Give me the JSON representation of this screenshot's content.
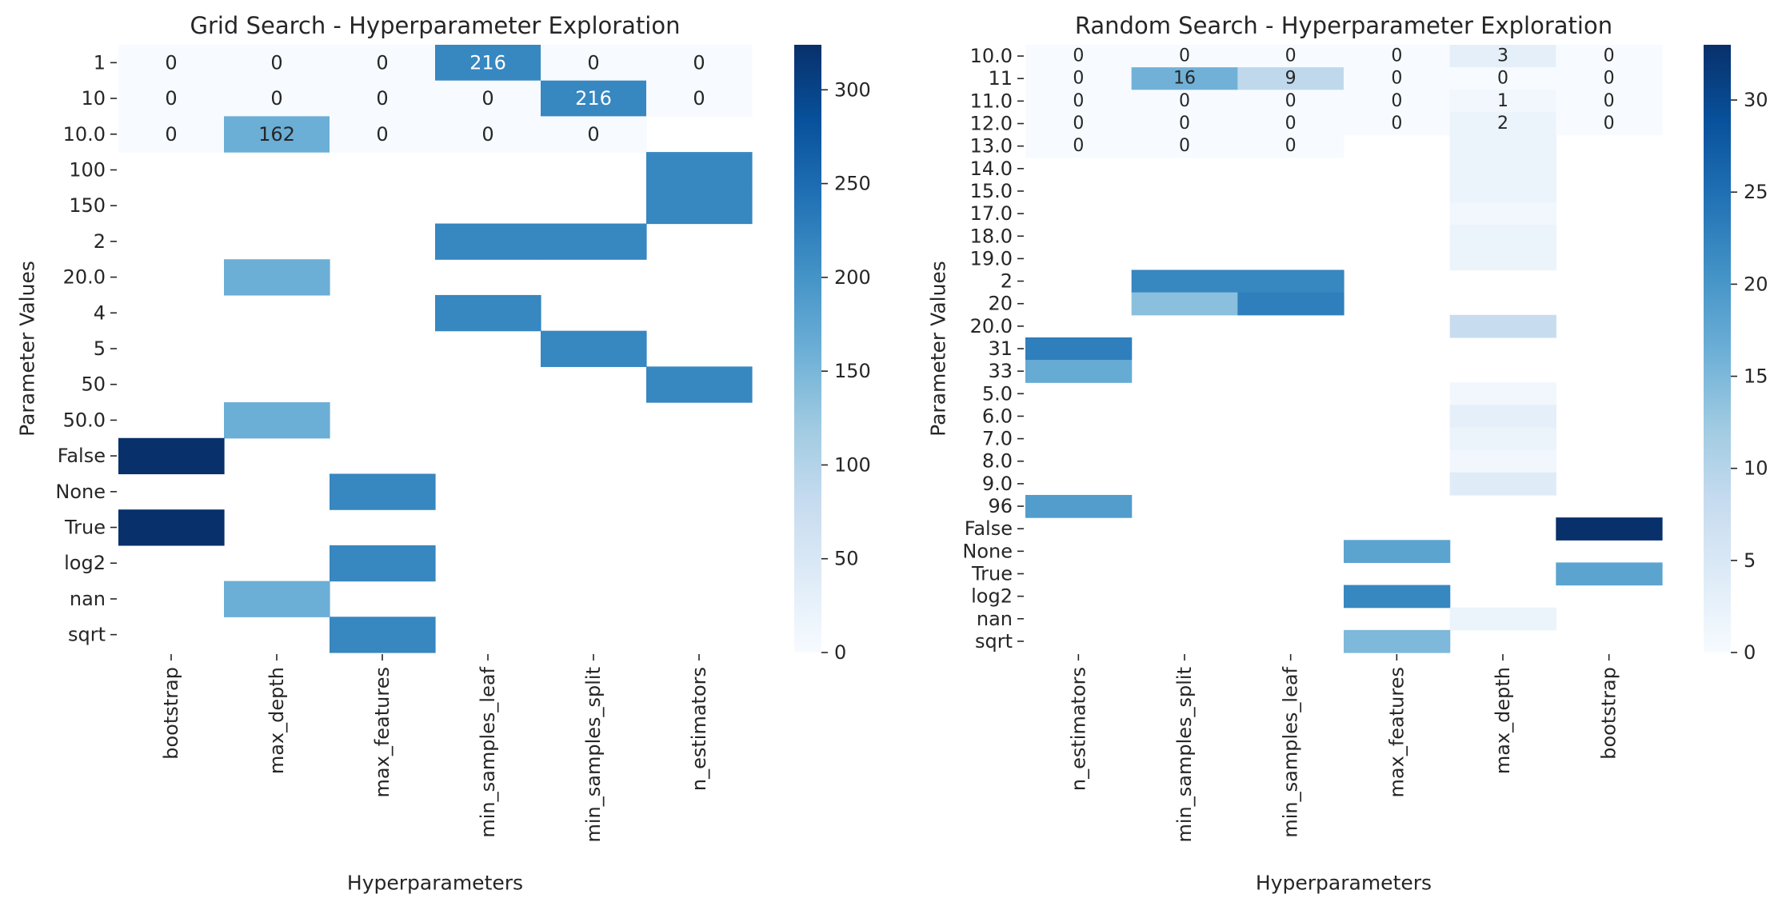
{
  "chart_data": [
    {
      "type": "heatmap",
      "title": "Grid Search - Hyperparameter Exploration",
      "xlabel": "Hyperparameters",
      "ylabel": "Parameter Values",
      "x_categories": [
        "bootstrap",
        "max_depth",
        "max_features",
        "min_samples_leaf",
        "min_samples_split",
        "n_estimators"
      ],
      "y_categories": [
        "1",
        "10",
        "10.0",
        "100",
        "150",
        "2",
        "20.0",
        "4",
        "5",
        "50",
        "50.0",
        "False",
        "None",
        "True",
        "log2",
        "nan",
        "sqrt"
      ],
      "values": [
        [
          0,
          0,
          0,
          216,
          0,
          0
        ],
        [
          0,
          0,
          0,
          0,
          216,
          0
        ],
        [
          0,
          162,
          0,
          0,
          0,
          null
        ],
        [
          null,
          null,
          null,
          null,
          null,
          216
        ],
        [
          null,
          null,
          null,
          null,
          null,
          216
        ],
        [
          null,
          null,
          null,
          216,
          216,
          null
        ],
        [
          null,
          162,
          null,
          null,
          null,
          null
        ],
        [
          null,
          null,
          null,
          216,
          null,
          null
        ],
        [
          null,
          null,
          null,
          null,
          216,
          null
        ],
        [
          null,
          null,
          null,
          null,
          null,
          216
        ],
        [
          null,
          162,
          null,
          null,
          null,
          null
        ],
        [
          324,
          null,
          null,
          null,
          null,
          null
        ],
        [
          null,
          null,
          216,
          null,
          null,
          null
        ],
        [
          324,
          null,
          null,
          null,
          null,
          null
        ],
        [
          null,
          null,
          216,
          null,
          null,
          null
        ],
        [
          null,
          162,
          null,
          null,
          null,
          null
        ],
        [
          null,
          null,
          216,
          null,
          null,
          null
        ]
      ],
      "annotation_rows": 3,
      "vmin": 0,
      "vmax": 324,
      "colorbar_ticks": [
        0,
        50,
        100,
        150,
        200,
        250,
        300
      ],
      "colormap": [
        "#f7fbff",
        "#deebf7",
        "#c6dbef",
        "#9ecae1",
        "#6baed6",
        "#4292c6",
        "#2171b5",
        "#08519c",
        "#08306b"
      ]
    },
    {
      "type": "heatmap",
      "title": "Random Search - Hyperparameter Exploration",
      "xlabel": "Hyperparameters",
      "ylabel": "Parameter Values",
      "x_categories": [
        "n_estimators",
        "min_samples_split",
        "min_samples_leaf",
        "max_features",
        "max_depth",
        "bootstrap"
      ],
      "y_categories": [
        "10.0",
        "11",
        "11.0",
        "12.0",
        "13.0",
        "14.0",
        "15.0",
        "17.0",
        "18.0",
        "19.0",
        "2",
        "20",
        "20.0",
        "31",
        "33",
        "5.0",
        "6.0",
        "7.0",
        "8.0",
        "9.0",
        "96",
        "False",
        "None",
        "True",
        "log2",
        "nan",
        "sqrt"
      ],
      "values": [
        [
          0,
          0,
          0,
          0,
          3,
          0
        ],
        [
          0,
          16,
          9,
          0,
          0,
          0
        ],
        [
          0,
          0,
          0,
          0,
          1,
          0
        ],
        [
          0,
          0,
          0,
          0,
          2,
          0
        ],
        [
          0,
          0,
          0,
          null,
          2,
          null
        ],
        [
          null,
          null,
          null,
          null,
          2,
          null
        ],
        [
          null,
          null,
          null,
          null,
          2,
          null
        ],
        [
          null,
          null,
          null,
          null,
          1,
          null
        ],
        [
          null,
          null,
          null,
          null,
          2,
          null
        ],
        [
          null,
          null,
          null,
          null,
          2,
          null
        ],
        [
          null,
          22,
          22,
          null,
          null,
          null
        ],
        [
          null,
          14,
          23,
          null,
          null,
          null
        ],
        [
          null,
          null,
          null,
          null,
          8,
          null
        ],
        [
          23,
          null,
          null,
          null,
          null,
          null
        ],
        [
          17,
          null,
          null,
          null,
          null,
          null
        ],
        [
          null,
          null,
          null,
          null,
          1,
          null
        ],
        [
          null,
          null,
          null,
          null,
          3,
          null
        ],
        [
          null,
          null,
          null,
          null,
          2,
          null
        ],
        [
          null,
          null,
          null,
          null,
          1,
          null
        ],
        [
          null,
          null,
          null,
          null,
          4,
          null
        ],
        [
          19,
          null,
          null,
          null,
          null,
          null
        ],
        [
          null,
          null,
          null,
          null,
          null,
          33
        ],
        [
          null,
          null,
          null,
          18,
          null,
          null
        ],
        [
          null,
          null,
          null,
          null,
          null,
          18
        ],
        [
          null,
          null,
          null,
          22,
          null,
          null
        ],
        [
          null,
          null,
          null,
          null,
          2,
          null
        ],
        [
          null,
          null,
          null,
          15,
          null,
          null
        ]
      ],
      "annotation_rows": 5,
      "annotation_cols_by_row": [
        [
          0,
          1,
          2,
          3,
          4,
          5
        ],
        [
          0,
          1,
          2,
          3,
          4,
          5
        ],
        [
          0,
          1,
          2,
          3,
          4,
          5
        ],
        [
          0,
          1,
          2,
          3,
          4,
          5
        ],
        [
          0,
          1,
          2
        ]
      ],
      "vmin": 0,
      "vmax": 33,
      "colorbar_ticks": [
        0,
        5,
        10,
        15,
        20,
        25,
        30
      ],
      "colormap": [
        "#f7fbff",
        "#deebf7",
        "#c6dbef",
        "#9ecae1",
        "#6baed6",
        "#4292c6",
        "#2171b5",
        "#08519c",
        "#08306b"
      ]
    }
  ]
}
